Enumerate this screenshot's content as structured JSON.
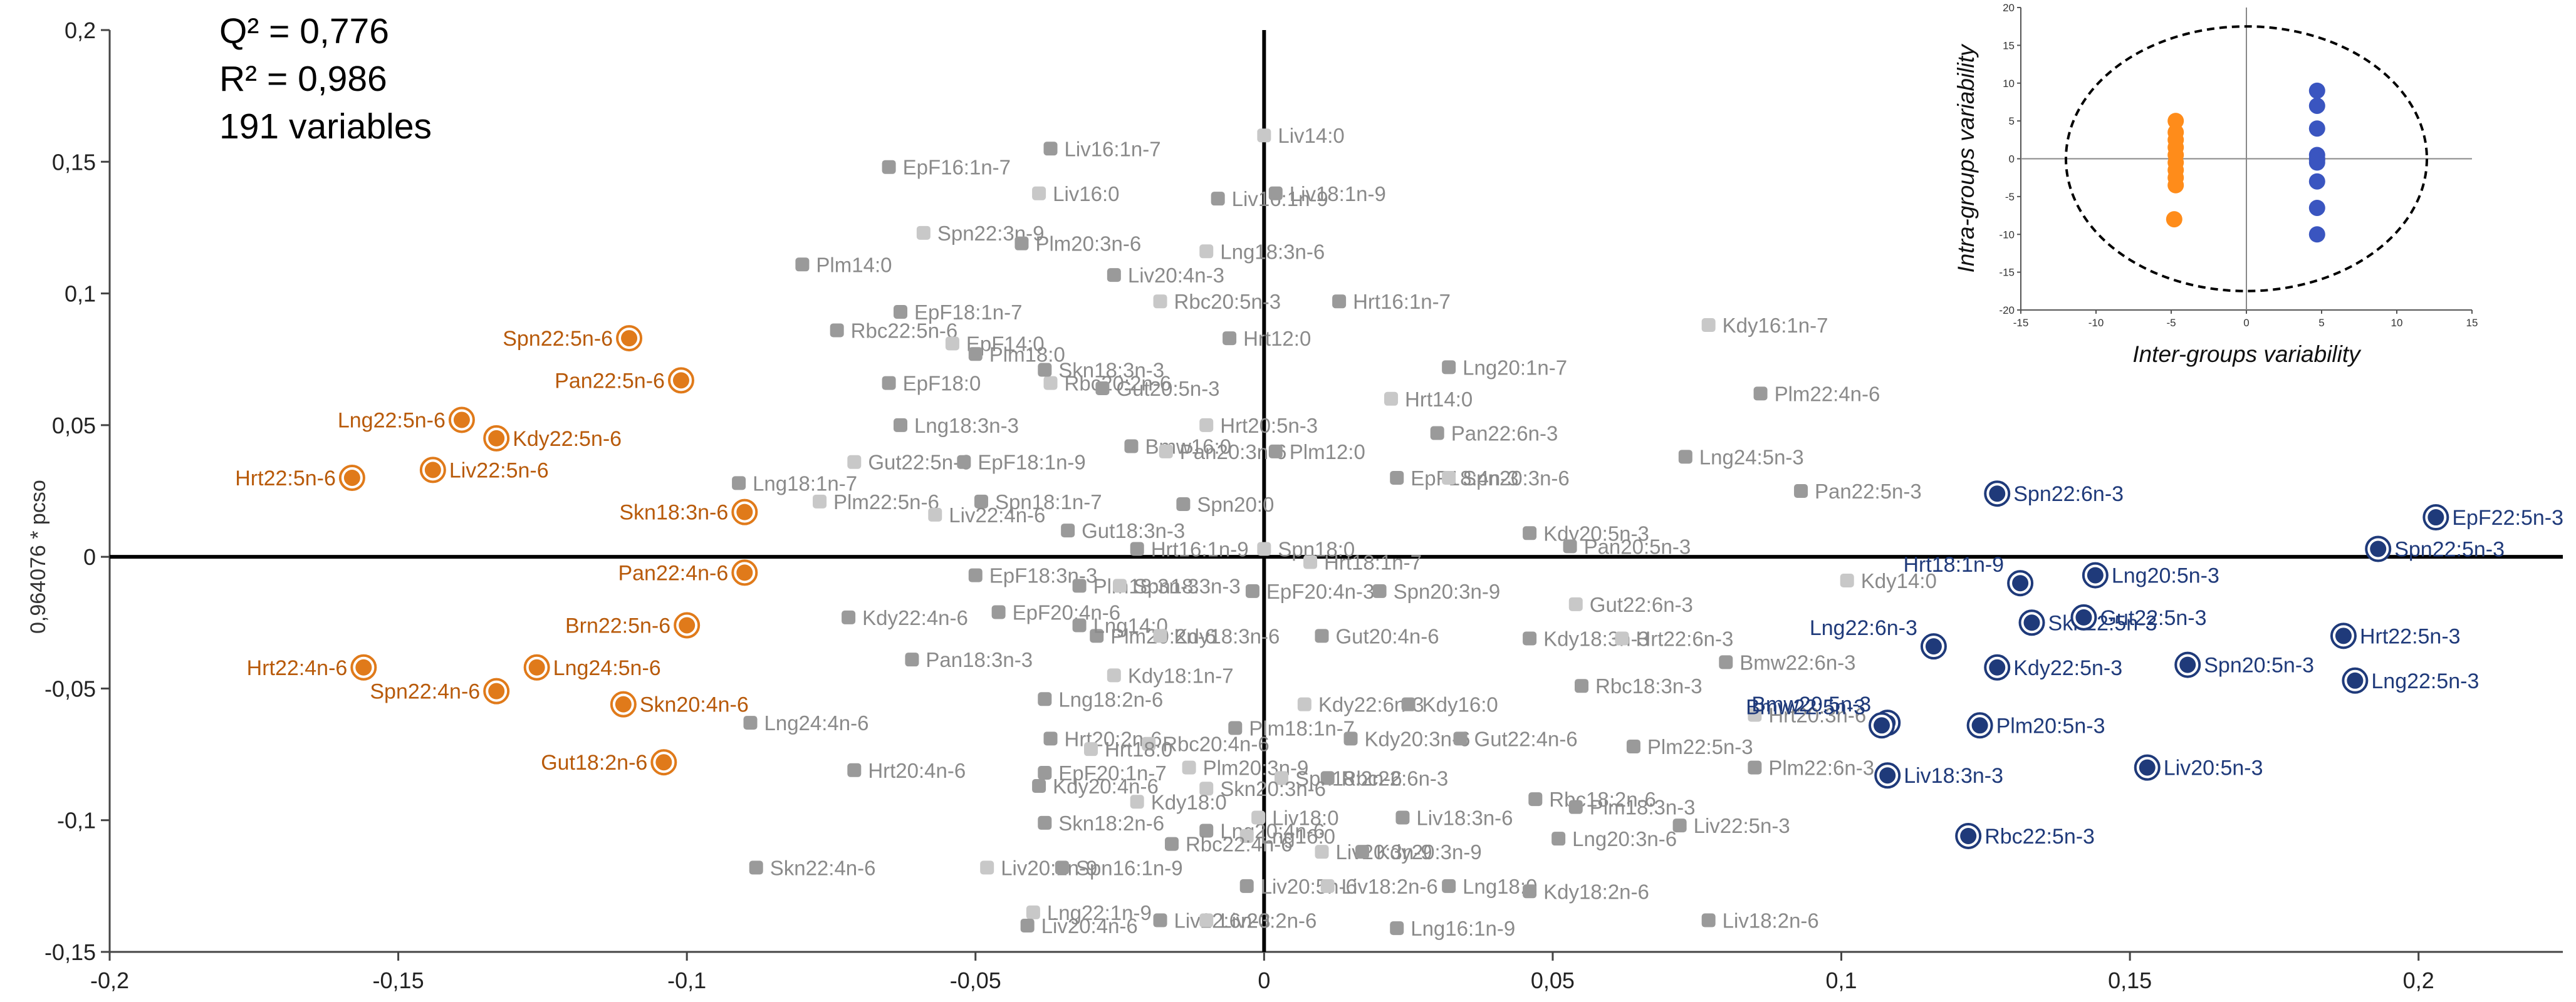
{
  "stats": {
    "q2": "Q² = 0,776",
    "r2": "R² = 0,986",
    "variables": "191 variables"
  },
  "colors": {
    "orange": "#e07a1a",
    "navy": "#1f3a7a",
    "grey_dark": "#9a9a9a",
    "grey_light": "#c8c8c8",
    "label_grey": "#8a8a8a",
    "inset_orange": "#ff8c1a",
    "inset_blue": "#3a55c0"
  },
  "chart_data": [
    {
      "type": "scatter",
      "ylabel": "0,964076 * pcso",
      "xlim": [
        -0.2,
        0.225
      ],
      "ylim": [
        -0.15,
        0.2
      ],
      "x_ticks": [
        "-0,2",
        "-0,15",
        "-0,1",
        "-0,05",
        "0",
        "0,05",
        "0,1",
        "0,15",
        "0,2"
      ],
      "y_ticks": [
        "0,2",
        "0,15",
        "0,1",
        "0,05",
        "0",
        "-0,05",
        "-0,1",
        "-0,15"
      ],
      "orange_points": [
        {
          "label": "Spn22:5n-6",
          "x": -0.11,
          "y": 0.083
        },
        {
          "label": "Pan22:5n-6",
          "x": -0.101,
          "y": 0.067
        },
        {
          "label": "Lng22:5n-6",
          "x": -0.139,
          "y": 0.052
        },
        {
          "label": "Kdy22:5n-6",
          "x": -0.133,
          "y": 0.045
        },
        {
          "label": "Liv22:5n-6",
          "x": -0.144,
          "y": 0.033
        },
        {
          "label": "Hrt22:5n-6",
          "x": -0.158,
          "y": 0.03
        },
        {
          "label": "Skn18:3n-6",
          "x": -0.09,
          "y": 0.017
        },
        {
          "label": "Pan22:4n-6",
          "x": -0.09,
          "y": -0.006
        },
        {
          "label": "Brn22:5n-6",
          "x": -0.1,
          "y": -0.026
        },
        {
          "label": "Hrt22:4n-6",
          "x": -0.156,
          "y": -0.042
        },
        {
          "label": "Lng24:5n-6",
          "x": -0.126,
          "y": -0.042
        },
        {
          "label": "Spn22:4n-6",
          "x": -0.133,
          "y": -0.051
        },
        {
          "label": "Skn20:4n-6",
          "x": -0.111,
          "y": -0.056
        },
        {
          "label": "Gut18:2n-6",
          "x": -0.104,
          "y": -0.078
        }
      ],
      "navy_points": [
        {
          "label": "EpF22:5n-3",
          "x": 0.203,
          "y": 0.015
        },
        {
          "label": "Spn22:5n-3",
          "x": 0.193,
          "y": 0.003
        },
        {
          "label": "Spn22:6n-3",
          "x": 0.127,
          "y": 0.024
        },
        {
          "label": "Hrt18:1n-9",
          "x": 0.131,
          "y": -0.01
        },
        {
          "label": "Lng20:5n-3",
          "x": 0.144,
          "y": -0.007
        },
        {
          "label": "Lng22:6n-3",
          "x": 0.116,
          "y": -0.034
        },
        {
          "label": "Skn22:5n-3",
          "x": 0.133,
          "y": -0.025
        },
        {
          "label": "Gut22:5n-3",
          "x": 0.142,
          "y": -0.023
        },
        {
          "label": "Hrt22:5n-3",
          "x": 0.187,
          "y": -0.03
        },
        {
          "label": "Kdy22:5n-3",
          "x": 0.127,
          "y": -0.042
        },
        {
          "label": "Spn20:5n-3",
          "x": 0.16,
          "y": -0.041
        },
        {
          "label": "Lng22:5n-3",
          "x": 0.189,
          "y": -0.047
        },
        {
          "label": "Bmw20:5n-3",
          "x": 0.108,
          "y": -0.063
        },
        {
          "label": "Bmw22:5n-3",
          "x": 0.107,
          "y": -0.064
        },
        {
          "label": "Plm20:5n-3",
          "x": 0.124,
          "y": -0.064
        },
        {
          "label": "Liv18:3n-3",
          "x": 0.108,
          "y": -0.083
        },
        {
          "label": "Liv20:5n-3",
          "x": 0.153,
          "y": -0.08
        },
        {
          "label": "Rbc22:5n-3",
          "x": 0.122,
          "y": -0.106
        }
      ],
      "grey_points": [
        {
          "label": "Liv14:0",
          "x": 0.0,
          "y": 0.16
        },
        {
          "label": "EpF16:1n-7",
          "x": -0.065,
          "y": 0.148
        },
        {
          "label": "Liv16:1n-7",
          "x": -0.037,
          "y": 0.155
        },
        {
          "label": "Liv16:0",
          "x": -0.039,
          "y": 0.138
        },
        {
          "label": "Liv16:1n-9",
          "x": -0.008,
          "y": 0.136
        },
        {
          "label": "Liv18:1n-9",
          "x": 0.002,
          "y": 0.138
        },
        {
          "label": "Spn22:3n-9",
          "x": -0.059,
          "y": 0.123
        },
        {
          "label": "Plm14:0",
          "x": -0.08,
          "y": 0.111
        },
        {
          "label": "Plm20:3n-6",
          "x": -0.042,
          "y": 0.119
        },
        {
          "label": "Lng18:3n-6",
          "x": -0.01,
          "y": 0.116
        },
        {
          "label": "Liv20:4n-3",
          "x": -0.026,
          "y": 0.107
        },
        {
          "label": "Hrt16:1n-7",
          "x": 0.013,
          "y": 0.097
        },
        {
          "label": "Rbc20:5n-3",
          "x": -0.018,
          "y": 0.097
        },
        {
          "label": "EpF18:1n-7",
          "x": -0.063,
          "y": 0.093
        },
        {
          "label": "Rbc22:5n-6",
          "x": -0.074,
          "y": 0.086
        },
        {
          "label": "EpF14:0",
          "x": -0.054,
          "y": 0.081
        },
        {
          "label": "Plm18:0",
          "x": -0.05,
          "y": 0.077
        },
        {
          "label": "Hrt12:0",
          "x": -0.006,
          "y": 0.083
        },
        {
          "label": "Kdy16:1n-7",
          "x": 0.077,
          "y": 0.088
        },
        {
          "label": "Lng20:1n-7",
          "x": 0.032,
          "y": 0.072
        },
        {
          "label": "EpF18:0",
          "x": -0.065,
          "y": 0.066
        },
        {
          "label": "Rbc20:2n-6",
          "x": -0.037,
          "y": 0.066
        },
        {
          "label": "Skn18:3n-3",
          "x": -0.038,
          "y": 0.071
        },
        {
          "label": "Gut20:5n-3",
          "x": -0.028,
          "y": 0.064
        },
        {
          "label": "Hrt14:0",
          "x": 0.022,
          "y": 0.06
        },
        {
          "label": "Plm22:4n-6",
          "x": 0.086,
          "y": 0.062
        },
        {
          "label": "Lng18:3n-3",
          "x": -0.063,
          "y": 0.05
        },
        {
          "label": "Hrt20:5n-3",
          "x": -0.01,
          "y": 0.05
        },
        {
          "label": "Pan22:6n-3",
          "x": 0.03,
          "y": 0.047
        },
        {
          "label": "Bmw16:0",
          "x": -0.023,
          "y": 0.042
        },
        {
          "label": "Pan20:3n-6",
          "x": -0.017,
          "y": 0.04
        },
        {
          "label": "Plm12:0",
          "x": 0.002,
          "y": 0.04
        },
        {
          "label": "Lng24:5n-3",
          "x": 0.073,
          "y": 0.038
        },
        {
          "label": "Gut22:5n-6",
          "x": -0.071,
          "y": 0.036
        },
        {
          "label": "EpF18:1n-9",
          "x": -0.052,
          "y": 0.036
        },
        {
          "label": "EpF18:4n-3",
          "x": 0.023,
          "y": 0.03
        },
        {
          "label": "Spn20:3n-6",
          "x": 0.032,
          "y": 0.03
        },
        {
          "label": "Lng18:1n-7",
          "x": -0.091,
          "y": 0.028
        },
        {
          "label": "Pan22:5n-3",
          "x": 0.093,
          "y": 0.025
        },
        {
          "label": "Plm22:5n-6",
          "x": -0.077,
          "y": 0.021
        },
        {
          "label": "Spn18:1n-7",
          "x": -0.049,
          "y": 0.021
        },
        {
          "label": "Spn20:0",
          "x": -0.014,
          "y": 0.02
        },
        {
          "label": "Liv22:4n-6",
          "x": -0.057,
          "y": 0.016
        },
        {
          "label": "Gut18:3n-3",
          "x": -0.034,
          "y": 0.01
        },
        {
          "label": "Kdy20:5n-3",
          "x": 0.046,
          "y": 0.009
        },
        {
          "label": "Spn18:0",
          "x": 0.0,
          "y": 0.003
        },
        {
          "label": "Pan20:5n-3",
          "x": 0.053,
          "y": 0.004
        },
        {
          "label": "Hrt16:1n-9",
          "x": -0.022,
          "y": 0.003
        },
        {
          "label": "Hrt18:1n-7",
          "x": 0.008,
          "y": -0.002
        },
        {
          "label": "EpF18:3n-3",
          "x": -0.05,
          "y": -0.007
        },
        {
          "label": "Plm18:3n-3",
          "x": -0.032,
          "y": -0.011
        },
        {
          "label": "Spn18:3n-3",
          "x": -0.025,
          "y": -0.011
        },
        {
          "label": "EpF20:4n-3",
          "x": -0.002,
          "y": -0.013
        },
        {
          "label": "Spn20:3n-9",
          "x": 0.02,
          "y": -0.013
        },
        {
          "label": "Kdy14:0",
          "x": 0.101,
          "y": -0.009
        },
        {
          "label": "Kdy22:4n-6",
          "x": -0.072,
          "y": -0.023
        },
        {
          "label": "EpF20:4n-6",
          "x": -0.046,
          "y": -0.021
        },
        {
          "label": "Gut22:6n-3",
          "x": 0.054,
          "y": -0.018
        },
        {
          "label": "Plm20:2n-6",
          "x": -0.029,
          "y": -0.03
        },
        {
          "label": "Lng14:0",
          "x": -0.032,
          "y": -0.026
        },
        {
          "label": "Kdy18:3n-6",
          "x": -0.018,
          "y": -0.03
        },
        {
          "label": "Gut20:4n-6",
          "x": 0.01,
          "y": -0.03
        },
        {
          "label": "Kdy18:3n-3",
          "x": 0.046,
          "y": -0.031
        },
        {
          "label": "Hrt22:6n-3",
          "x": 0.062,
          "y": -0.031
        },
        {
          "label": "Pan18:3n-3",
          "x": -0.061,
          "y": -0.039
        },
        {
          "label": "Bmw22:6n-3",
          "x": 0.08,
          "y": -0.04
        },
        {
          "label": "Kdy18:1n-7",
          "x": -0.026,
          "y": -0.045
        },
        {
          "label": "Rbc18:3n-3",
          "x": 0.055,
          "y": -0.049
        },
        {
          "label": "Lng18:2n-6",
          "x": -0.038,
          "y": -0.054
        },
        {
          "label": "Kdy22:6n-3",
          "x": 0.007,
          "y": -0.056
        },
        {
          "label": "Kdy16:0",
          "x": 0.025,
          "y": -0.056
        },
        {
          "label": "Lng24:4n-6",
          "x": -0.089,
          "y": -0.063
        },
        {
          "label": "Hrt20:3n-6",
          "x": 0.085,
          "y": -0.06
        },
        {
          "label": "Plm18:1n-7",
          "x": -0.005,
          "y": -0.065
        },
        {
          "label": "Hrt20:2n-6",
          "x": -0.037,
          "y": -0.069
        },
        {
          "label": "Rbc20:4n-6",
          "x": -0.02,
          "y": -0.071
        },
        {
          "label": "Kdy20:3n-6",
          "x": 0.015,
          "y": -0.069
        },
        {
          "label": "Gut22:4n-6",
          "x": 0.034,
          "y": -0.069
        },
        {
          "label": "Hrt18:0",
          "x": -0.03,
          "y": -0.073
        },
        {
          "label": "Plm22:5n-3",
          "x": 0.064,
          "y": -0.072
        },
        {
          "label": "Hrt20:4n-6",
          "x": -0.071,
          "y": -0.081
        },
        {
          "label": "Plm20:3n-9",
          "x": -0.013,
          "y": -0.08
        },
        {
          "label": "Plm22:6n-3",
          "x": 0.085,
          "y": -0.08
        },
        {
          "label": "EpF20:1n-7",
          "x": -0.038,
          "y": -0.082
        },
        {
          "label": "Spn18:2n-6",
          "x": 0.003,
          "y": -0.084
        },
        {
          "label": "Rbc22:6n-3",
          "x": 0.011,
          "y": -0.084
        },
        {
          "label": "Kdy20:4n-6",
          "x": -0.039,
          "y": -0.087
        },
        {
          "label": "Skn20:3n-6",
          "x": -0.01,
          "y": -0.088
        },
        {
          "label": "Rbc18:2n-6",
          "x": 0.047,
          "y": -0.092
        },
        {
          "label": "Plm18:3n-3",
          "x": 0.054,
          "y": -0.095
        },
        {
          "label": "Kdy18:0",
          "x": -0.022,
          "y": -0.093
        },
        {
          "label": "Skn18:2n-6",
          "x": -0.038,
          "y": -0.101
        },
        {
          "label": "Lng20:4n-6",
          "x": -0.01,
          "y": -0.104
        },
        {
          "label": "Liv18:0",
          "x": -0.001,
          "y": -0.099
        },
        {
          "label": "Liv18:3n-6",
          "x": 0.024,
          "y": -0.099
        },
        {
          "label": "Liv22:5n-3",
          "x": 0.072,
          "y": -0.102
        },
        {
          "label": "Lng16:0",
          "x": -0.003,
          "y": -0.106
        },
        {
          "label": "Lng20:3n-6",
          "x": 0.051,
          "y": -0.107
        },
        {
          "label": "Rbc22:4n-6",
          "x": -0.016,
          "y": -0.109
        },
        {
          "label": "Liv20:3n-9",
          "x": 0.01,
          "y": -0.112
        },
        {
          "label": "Kdy20:3n-9",
          "x": 0.017,
          "y": -0.112
        },
        {
          "label": "Skn22:4n-6",
          "x": -0.088,
          "y": -0.118
        },
        {
          "label": "Liv20:1n-9",
          "x": -0.048,
          "y": -0.118
        },
        {
          "label": "Spn16:1n-9",
          "x": -0.035,
          "y": -0.118
        },
        {
          "label": "Liv20:5n-6",
          "x": -0.003,
          "y": -0.125
        },
        {
          "label": "Liv18:2n-6",
          "x": 0.011,
          "y": -0.125
        },
        {
          "label": "Lng18:0",
          "x": 0.032,
          "y": -0.125
        },
        {
          "label": "Kdy18:2n-6",
          "x": 0.046,
          "y": -0.127
        },
        {
          "label": "Lng22:1n-9",
          "x": -0.04,
          "y": -0.135
        },
        {
          "label": "Liv20:4n-6",
          "x": -0.041,
          "y": -0.14
        },
        {
          "label": "Liv22:6n-3",
          "x": -0.018,
          "y": -0.138
        },
        {
          "label": "Liv20:2n-6",
          "x": -0.01,
          "y": -0.138
        },
        {
          "label": "Lng16:1n-9",
          "x": 0.023,
          "y": -0.141
        },
        {
          "label": "Liv18:2n-6",
          "x": 0.077,
          "y": -0.138
        }
      ]
    },
    {
      "type": "scatter",
      "title": "",
      "xlabel": "Inter-groups variability",
      "ylabel": "Intra-groups variability",
      "xlim": [
        -15,
        15
      ],
      "ylim": [
        -20,
        20
      ],
      "x_ticks": [
        "-15",
        "-10",
        "-5",
        "0",
        "5",
        "10",
        "15"
      ],
      "y_ticks": [
        "20",
        "15",
        "10",
        "5",
        "0",
        "-5",
        "-10",
        "-15",
        "-20"
      ],
      "series": [
        {
          "color": "orange",
          "x": [
            -4.7,
            -4.7,
            -4.7,
            -4.7,
            -4.7,
            -4.7,
            -4.7,
            -4.7,
            -4.7,
            -4.8
          ],
          "y": [
            5,
            3.5,
            2.5,
            1.5,
            0.5,
            -0.5,
            -1.5,
            -2.5,
            -3.5,
            -8
          ]
        },
        {
          "color": "blue",
          "x": [
            4.7,
            4.7,
            4.7,
            4.7,
            4.7,
            4.7,
            4.7,
            4.7,
            4.7,
            4.7
          ],
          "y": [
            9,
            7,
            4,
            0.5,
            -0.5,
            -3,
            -6.5,
            -10,
            0,
            -0.2
          ]
        }
      ]
    }
  ]
}
